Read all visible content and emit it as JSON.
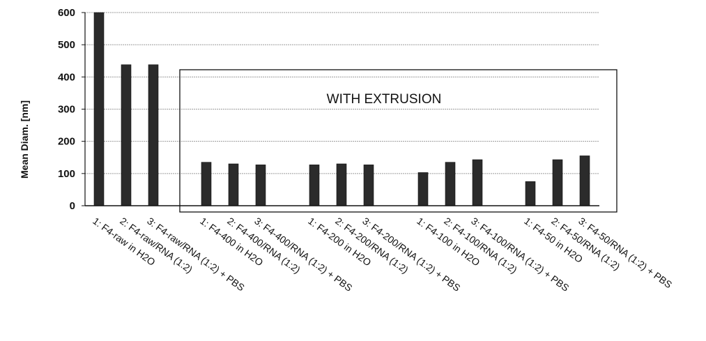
{
  "chart_data": {
    "type": "bar",
    "title": "",
    "xlabel": "",
    "ylabel": "Mean Diam. [nm]",
    "ylim": [
      0,
      600
    ],
    "yticks": [
      0,
      100,
      200,
      300,
      400,
      500,
      600
    ],
    "grid": true,
    "legend": "none",
    "bar_color": "#2b2b2b",
    "categories": [
      "1: F4-raw in H2O",
      "2: F4-raw/RNA (1:2)",
      "3: F4-raw/RNA (1:2) + PBS",
      "1: F4-400 in H2O",
      "2: F4-400/RNA (1:2)",
      "3: F4-400/RNA (1:2) + PBS",
      "1: F4-200 in H2O",
      "2: F4-200/RNA (1:2)",
      "3: F4-200/RNA (1:2) + PBS",
      "1: F4-100 in H2O",
      "2: F4-100/RNA (1:2)",
      "3: F4-100/RNA (1:2) + PBS",
      "1: F4-50 in H2O",
      "2: F4-50/RNA (1:2)",
      "3: F4-50/RNA (1:2) + PBS"
    ],
    "values": [
      600,
      438,
      438,
      135,
      130,
      127,
      127,
      130,
      127,
      103,
      135,
      143,
      75,
      143,
      155
    ],
    "annotation": {
      "text": "WITH EXTRUSION",
      "first_category_index": 3,
      "last_category_index": 14
    }
  }
}
